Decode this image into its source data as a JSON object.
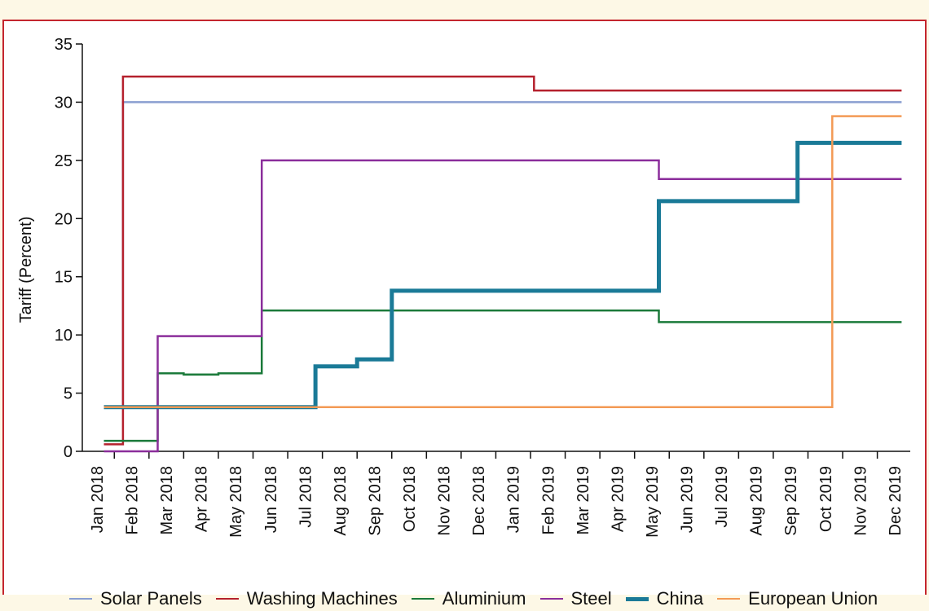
{
  "chart_data": {
    "type": "line",
    "step": true,
    "title": "",
    "xlabel": "",
    "ylabel": "Tariff (Percent)",
    "ylim": [
      0,
      35
    ],
    "yticks": [
      0,
      5,
      10,
      15,
      20,
      25,
      30,
      35
    ],
    "grid": false,
    "legend_position": "bottom",
    "x_ticks": [
      "Jan 2018",
      "Feb 2018",
      "Mar 2018",
      "Apr 2018",
      "May 2018",
      "Jun 2018",
      "Jul 2018",
      "Aug 2018",
      "Sep 2018",
      "Oct 2018",
      "Nov 2018",
      "Dec 2018",
      "Jan 2019",
      "Feb 2019",
      "Mar 2019",
      "Apr 2019",
      "May 2019",
      "Jun 2019",
      "Jul 2019",
      "Aug 2019",
      "Sep 2019",
      "Oct 2019",
      "Nov 2019",
      "Dec 2019"
    ],
    "x_unit": "month index (0 = Jan 2018)",
    "series": [
      {
        "name": "Solar Panels",
        "color": "#8a9fd1",
        "width": "thin",
        "points": [
          [
            0.2,
            3.8
          ],
          [
            0.75,
            3.8
          ],
          [
            0.75,
            30
          ],
          [
            23.2,
            30
          ]
        ]
      },
      {
        "name": "Washing Machines",
        "color": "#b5212d",
        "width": "thin",
        "points": [
          [
            0.2,
            0.6
          ],
          [
            0.75,
            0.6
          ],
          [
            0.75,
            32.2
          ],
          [
            12.6,
            32.2
          ],
          [
            12.6,
            31.0
          ],
          [
            23.2,
            31.0
          ]
        ]
      },
      {
        "name": "Aluminium",
        "color": "#1b7a3a",
        "width": "thin",
        "points": [
          [
            0.2,
            0.9
          ],
          [
            1.75,
            0.9
          ],
          [
            1.75,
            6.7
          ],
          [
            2.5,
            6.7
          ],
          [
            2.5,
            6.6
          ],
          [
            3.5,
            6.6
          ],
          [
            3.5,
            6.7
          ],
          [
            4.75,
            6.7
          ],
          [
            4.75,
            12.1
          ],
          [
            16.2,
            12.1
          ],
          [
            16.2,
            11.1
          ],
          [
            23.2,
            11.1
          ]
        ]
      },
      {
        "name": "Steel",
        "color": "#8b2e9b",
        "width": "thin",
        "points": [
          [
            0.2,
            0
          ],
          [
            1.75,
            0
          ],
          [
            1.75,
            9.9
          ],
          [
            4.75,
            9.9
          ],
          [
            4.75,
            25
          ],
          [
            16.2,
            25
          ],
          [
            16.2,
            23.4
          ],
          [
            23.2,
            23.4
          ]
        ]
      },
      {
        "name": "China",
        "color": "#1a7a97",
        "width": "thick",
        "points": [
          [
            0.2,
            3.8
          ],
          [
            6.3,
            3.8
          ],
          [
            6.3,
            7.3
          ],
          [
            7.5,
            7.3
          ],
          [
            7.5,
            7.9
          ],
          [
            8.5,
            7.9
          ],
          [
            8.5,
            13.8
          ],
          [
            16.2,
            13.8
          ],
          [
            16.2,
            21.5
          ],
          [
            20.2,
            21.5
          ],
          [
            20.2,
            26.5
          ],
          [
            23.2,
            26.5
          ]
        ]
      },
      {
        "name": "European Union",
        "color": "#f39a55",
        "width": "thin",
        "points": [
          [
            0.2,
            3.8
          ],
          [
            21.2,
            3.8
          ],
          [
            21.2,
            28.8
          ],
          [
            23.2,
            28.8
          ]
        ]
      }
    ]
  }
}
